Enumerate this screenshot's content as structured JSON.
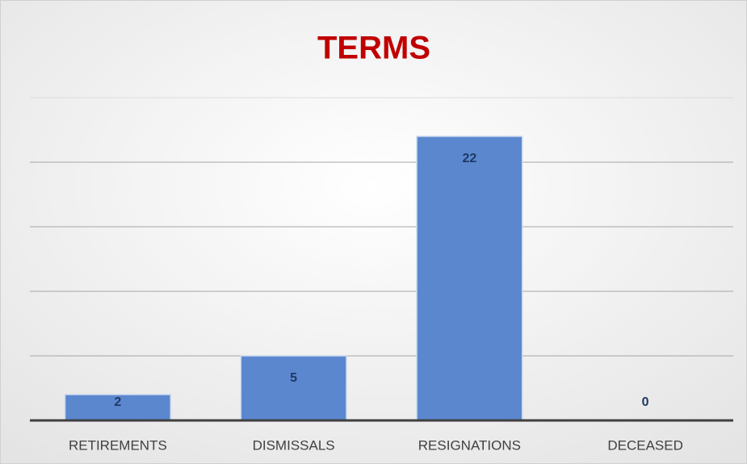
{
  "chart_data": {
    "type": "bar",
    "title": "TERMS",
    "categories": [
      "RETIREMENTS",
      "DISMISSALS",
      "RESIGNATIONS",
      "DECEASED"
    ],
    "values": [
      2,
      5,
      22,
      0
    ],
    "color": "#5b87cf",
    "ylim": [
      0,
      25
    ],
    "yticks": [
      0,
      5,
      10,
      15,
      20,
      25
    ],
    "grid": true
  }
}
